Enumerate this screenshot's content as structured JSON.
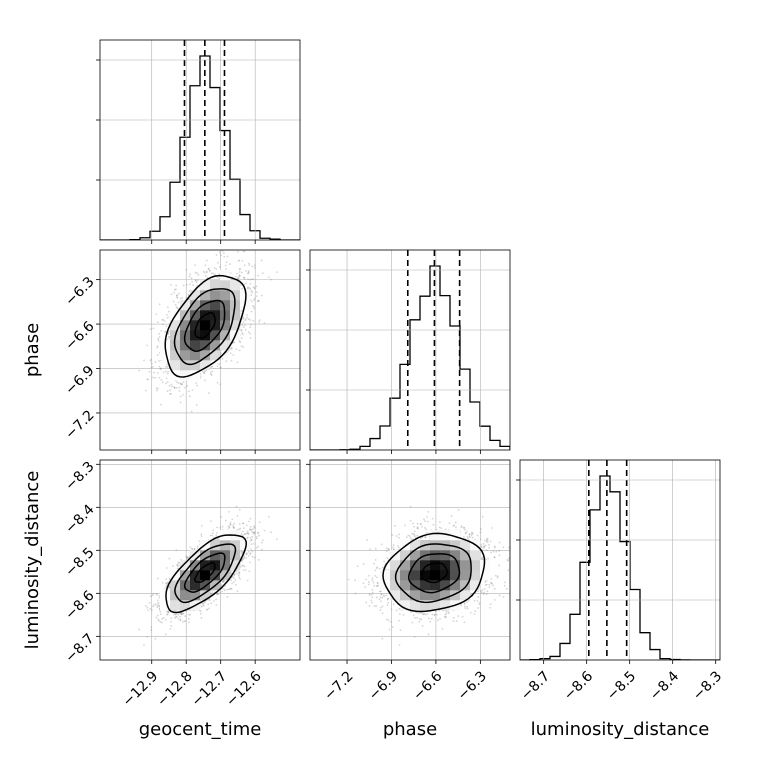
{
  "chart_data": {
    "type": "corner",
    "parameters": [
      {
        "name": "geocent_time",
        "median": -12.746,
        "q16": -12.805,
        "q84": -12.689,
        "mean": -12.745,
        "std": 0.058,
        "range": [
          -13.05,
          -12.47
        ],
        "ticks": [
          -12.9,
          -12.8,
          -12.7,
          -12.6
        ],
        "tick_labels": [
          "−12.9",
          "−12.8",
          "−12.7",
          "−12.6"
        ]
      },
      {
        "name": "phase",
        "median": -6.61,
        "q16": -6.79,
        "q84": -6.44,
        "mean": -6.61,
        "std": 0.17,
        "range": [
          -7.45,
          -6.1
        ],
        "ticks": [
          -7.2,
          -6.9,
          -6.6,
          -6.3
        ],
        "tick_labels": [
          "−7.2",
          "−6.9",
          "−6.6",
          "−6.3"
        ]
      },
      {
        "name": "luminosity_distance",
        "median": -8.553,
        "q16": -8.595,
        "q84": -8.507,
        "mean": -8.552,
        "std": 0.045,
        "range": [
          -8.755,
          -8.29
        ],
        "ticks": [
          -8.7,
          -8.6,
          -8.5,
          -8.4,
          -8.3
        ],
        "tick_labels": [
          "−8.7",
          "−8.6",
          "−8.5",
          "−8.4",
          "−8.3"
        ]
      }
    ],
    "correlations": [
      [
        1,
        0.5,
        0.7
      ],
      [
        0.5,
        1,
        0.15
      ],
      [
        0.7,
        0.15,
        1
      ]
    ],
    "hist_bins": 20,
    "grid": true,
    "quantile_lines": [
      0.16,
      0.5,
      0.84
    ]
  }
}
